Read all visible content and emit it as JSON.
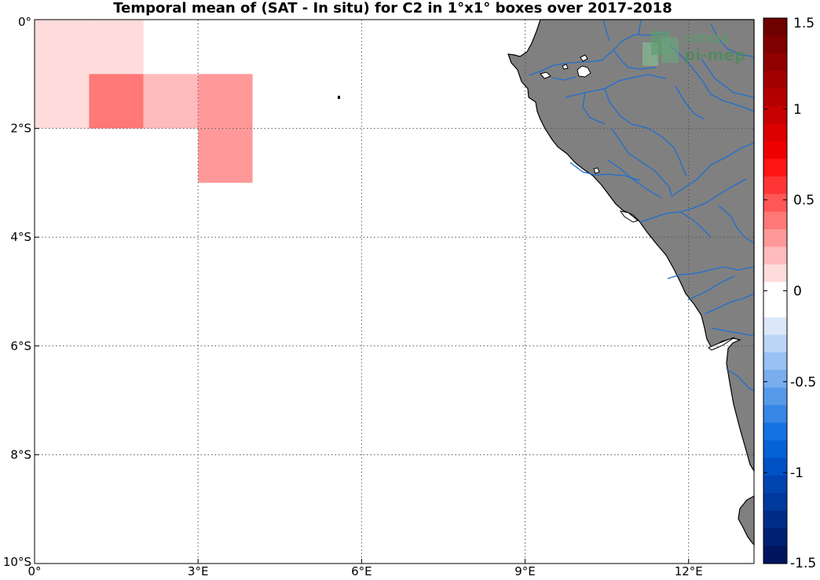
{
  "title": "Temporal mean of (SAT - In situ) for C2 in 1°x1° boxes over 2017-2018",
  "logo": {
    "line1": "smos",
    "line2": "pi-mep"
  },
  "map": {
    "lon_range": [
      0,
      13.2
    ],
    "lat_range": [
      -10,
      0
    ],
    "x_ticks": [
      {
        "value": 0,
        "label": "0°"
      },
      {
        "value": 3,
        "label": "3°E"
      },
      {
        "value": 6,
        "label": "6°E"
      },
      {
        "value": 9,
        "label": "9°E"
      },
      {
        "value": 12,
        "label": "12°E"
      }
    ],
    "y_ticks": [
      {
        "value": 0,
        "label": "0°"
      },
      {
        "value": -2,
        "label": "2°S"
      },
      {
        "value": -4,
        "label": "4°S"
      },
      {
        "value": -6,
        "label": "6°S"
      },
      {
        "value": -8,
        "label": "8°S"
      },
      {
        "value": -10,
        "label": "10°S"
      }
    ],
    "land_color": "#808080",
    "river_color": "#1f6fd0",
    "grid": true
  },
  "chart_data": {
    "type": "heatmap",
    "title": "Temporal mean of (SAT - In situ) for C2 in 1°x1° boxes over 2017-2018",
    "boxes": [
      {
        "lon": [
          0,
          1
        ],
        "lat": [
          -1,
          0
        ],
        "value": 0.1
      },
      {
        "lon": [
          1,
          2
        ],
        "lat": [
          -1,
          0
        ],
        "value": 0.1
      },
      {
        "lon": [
          0,
          1
        ],
        "lat": [
          -2,
          -1
        ],
        "value": 0.1
      },
      {
        "lon": [
          1,
          2
        ],
        "lat": [
          -2,
          -1
        ],
        "value": 0.4
      },
      {
        "lon": [
          2,
          3
        ],
        "lat": [
          -2,
          -1
        ],
        "value": 0.2
      },
      {
        "lon": [
          3,
          4
        ],
        "lat": [
          -2,
          -1
        ],
        "value": 0.3
      },
      {
        "lon": [
          3,
          4
        ],
        "lat": [
          -3,
          -2
        ],
        "value": 0.3
      }
    ],
    "colorbar": {
      "range": [
        -1.5,
        1.5
      ],
      "ticks": [
        1.5,
        1,
        0.5,
        0,
        -0.5,
        -1,
        -1.5
      ],
      "step": 0.1,
      "colors_top_to_bottom": [
        "#6e0000",
        "#7f0000",
        "#900000",
        "#a30000",
        "#b50000",
        "#c80000",
        "#dc0000",
        "#ef0000",
        "#ff1414",
        "#ff3535",
        "#ff5757",
        "#ff7878",
        "#ff9999",
        "#ffbbbb",
        "#ffdcdc",
        "#ffffff",
        "#ffffff",
        "#dce8fa",
        "#bbd5f6",
        "#99c1f2",
        "#78adee",
        "#579aea",
        "#3586e6",
        "#1472e2",
        "#0562d6",
        "#0052c4",
        "#0044b0",
        "#00389c",
        "#002c88",
        "#002074",
        "#001460"
      ]
    }
  }
}
